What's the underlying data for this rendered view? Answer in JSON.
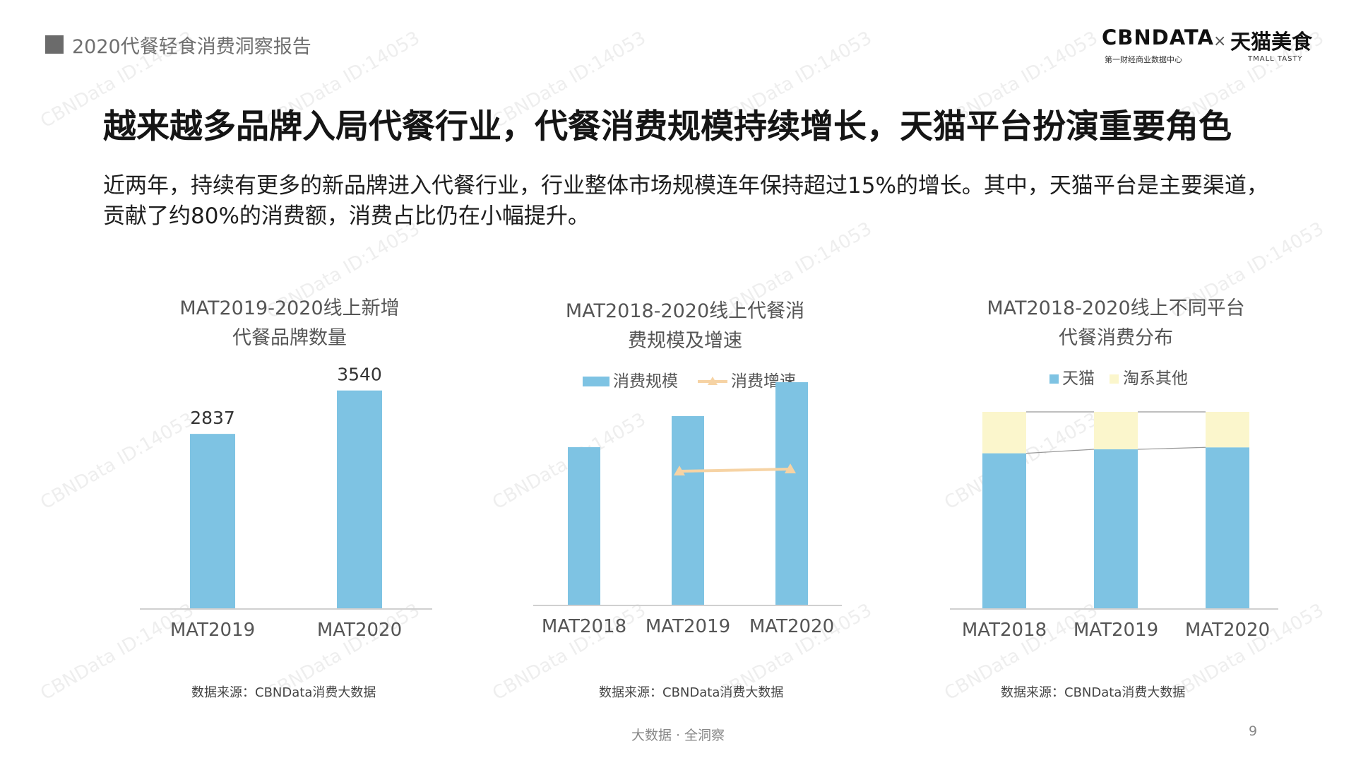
{
  "header": {
    "section_label": "2020代餐轻食消费洞察报告",
    "logo_cbn": "CBNDATA",
    "logo_cbn_sub": "第一财经商业数据中心",
    "logo_x": "×",
    "logo_tmall": "天猫美食",
    "logo_tmall_sub": "TMALL TASTY"
  },
  "headline": "越来越多品牌入局代餐行业，代餐消费规模持续增长，天猫平台扮演重要角色",
  "description": "近两年，持续有更多的新品牌进入代餐行业，行业整体市场规模连年保持超过15%的增长。其中，天猫平台是主要渠道，贡献了约80%的消费额，消费占比仍在小幅提升。",
  "charts": [
    {
      "title_line1": "MAT2019-2020线上新增",
      "title_line2": "代餐品牌数量",
      "source": "数据来源：CBNData消费大数据"
    },
    {
      "title_line1": "MAT2018-2020线上代餐消",
      "title_line2": "费规模及增速",
      "source": "数据来源：CBNData消费大数据"
    },
    {
      "title_line1": "MAT2018-2020线上不同平台",
      "title_line2": "代餐消费分布",
      "source": "数据来源：CBNData消费大数据"
    }
  ],
  "chart_data": [
    {
      "type": "bar",
      "categories": [
        "MAT2019",
        "MAT2020"
      ],
      "values": [
        2837,
        3540
      ],
      "data_labels": [
        "2837",
        "3540"
      ],
      "ylim": [
        0,
        3800
      ],
      "colors": {
        "bar": "#7ec3e3"
      }
    },
    {
      "type": "bar",
      "categories": [
        "MAT2018",
        "MAT2019",
        "MAT2020"
      ],
      "series": [
        {
          "name": "消费规模",
          "kind": "bar",
          "values": [
            0.56,
            0.67,
            0.79
          ]
        },
        {
          "name": "消费增速",
          "kind": "line",
          "values": [
            null,
            0.17,
            0.18
          ]
        }
      ],
      "legend": "top-center",
      "value_scale": "relative (no axis or data labels shown)",
      "colors": {
        "bar": "#7ec3e3",
        "line": "#f6d3a4"
      }
    },
    {
      "type": "bar",
      "stacked": true,
      "normalized": true,
      "categories": [
        "MAT2018",
        "MAT2019",
        "MAT2020"
      ],
      "series": [
        {
          "name": "天猫",
          "values": [
            0.79,
            0.81,
            0.82
          ]
        },
        {
          "name": "淘系其他",
          "values": [
            0.21,
            0.19,
            0.18
          ]
        }
      ],
      "legend": "top-center",
      "colors": {
        "天猫": "#7ec3e3",
        "淘系其他": "#fbf6cc"
      }
    }
  ],
  "footer": {
    "tagline": "大数据 · 全洞察",
    "page_number": "9"
  },
  "watermark_text": "CBNData ID:14053"
}
